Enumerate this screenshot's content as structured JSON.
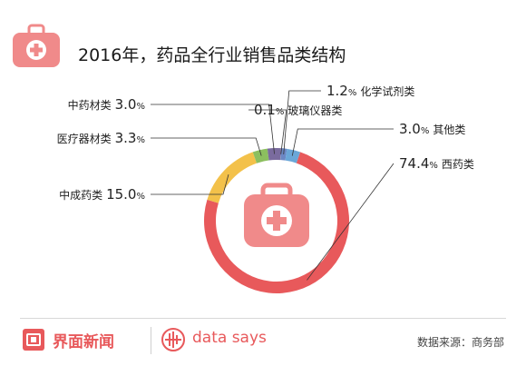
{
  "header": {
    "title": "2016年，药品全行业销售品类结构"
  },
  "chart_data": {
    "type": "pie",
    "title": "2016年，药品全行业销售品类结构",
    "unit": "%",
    "slices": [
      {
        "name": "西药类",
        "value": 74.4,
        "value_label": "74.4",
        "color": "#e8595b"
      },
      {
        "name": "中成药类",
        "value": 15.0,
        "value_label": "15.0",
        "color": "#f3c14a"
      },
      {
        "name": "医疗器材类",
        "value": 3.3,
        "value_label": "3.3",
        "color": "#8cbf5f"
      },
      {
        "name": "中药材类",
        "value": 3.0,
        "value_label": "3.0",
        "color": "#7a6b9e"
      },
      {
        "name": "玻璃仪器类",
        "value": 0.1,
        "value_label": "0.1",
        "color": "#5a6fa8"
      },
      {
        "name": "化学试剂类",
        "value": 1.2,
        "value_label": "1.2",
        "color": "#6b87c4"
      },
      {
        "name": "其他类",
        "value": 3.0,
        "value_label": "3.0",
        "color": "#6aa7d8"
      }
    ]
  },
  "footer": {
    "brand": "界面新闻",
    "data_says": "data says",
    "source": "数据来源：商务部"
  },
  "colors": {
    "accent": "#e8595b",
    "icon_bg": "#f08a8a"
  }
}
